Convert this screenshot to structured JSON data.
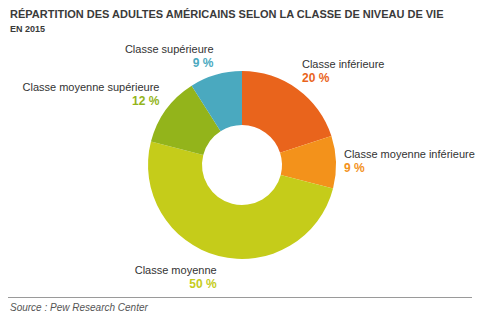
{
  "chart_data": {
    "type": "donut",
    "title": "RÉPARTITION DES ADULTES AMÉRICAINS SELON LA CLASSE DE NIVEAU DE VIE",
    "subtitle": "EN 2015",
    "source": "Source : Pew Research Center",
    "categories": [
      "Classe inférieure",
      "Classe moyenne inférieure",
      "Classe moyenne",
      "Classe moyenne supérieure",
      "Classe supérieure"
    ],
    "values": [
      20,
      9,
      50,
      12,
      9
    ],
    "value_labels": [
      "20 %",
      "9 %",
      "50 %",
      "12 %",
      "9 %"
    ],
    "colors": [
      "#e9641c",
      "#f3921b",
      "#c5cc1a",
      "#93b41b",
      "#4aa9bf"
    ],
    "data_labels": true
  }
}
